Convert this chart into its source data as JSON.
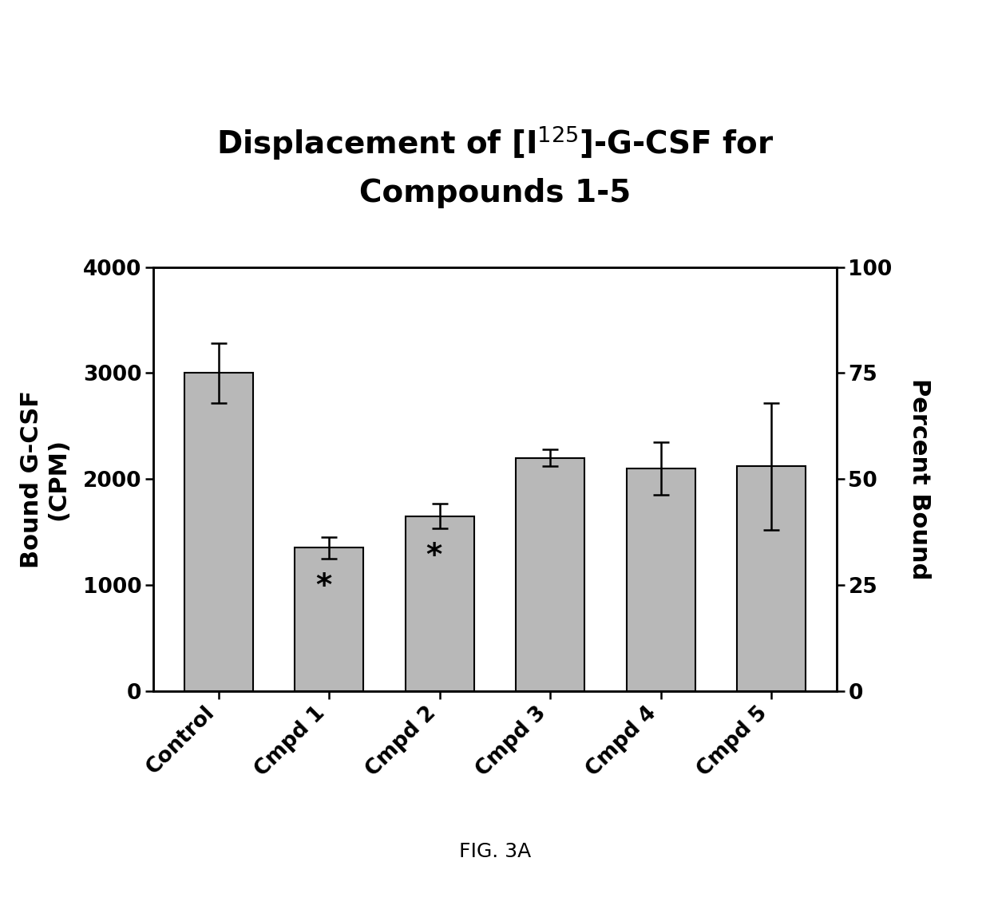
{
  "categories": [
    "Control",
    "Cmpd 1",
    "Cmpd 2",
    "Cmpd 3",
    "Cmpd 4",
    "Cmpd 5"
  ],
  "values": [
    3000,
    1350,
    1650,
    2200,
    2100,
    2120
  ],
  "errors": [
    280,
    100,
    120,
    80,
    250,
    600
  ],
  "significance": [
    false,
    true,
    true,
    false,
    false,
    false
  ],
  "bar_color": "#b8b8b8",
  "bar_edgecolor": "#000000",
  "ylabel_left": "Bound G-CSF\n(CPM)",
  "ylabel_right": "Percent Bound",
  "ylim_left": [
    0,
    4000
  ],
  "ylim_right": [
    0,
    100
  ],
  "yticks_left": [
    0,
    1000,
    2000,
    3000,
    4000
  ],
  "yticks_right": [
    0,
    25,
    50,
    75,
    100
  ],
  "fig_caption": "FIG. 3A",
  "background_color": "#ffffff",
  "title_fontsize": 28,
  "axis_label_fontsize": 22,
  "tick_fontsize": 19,
  "caption_fontsize": 18,
  "asterisk_fontsize": 28
}
